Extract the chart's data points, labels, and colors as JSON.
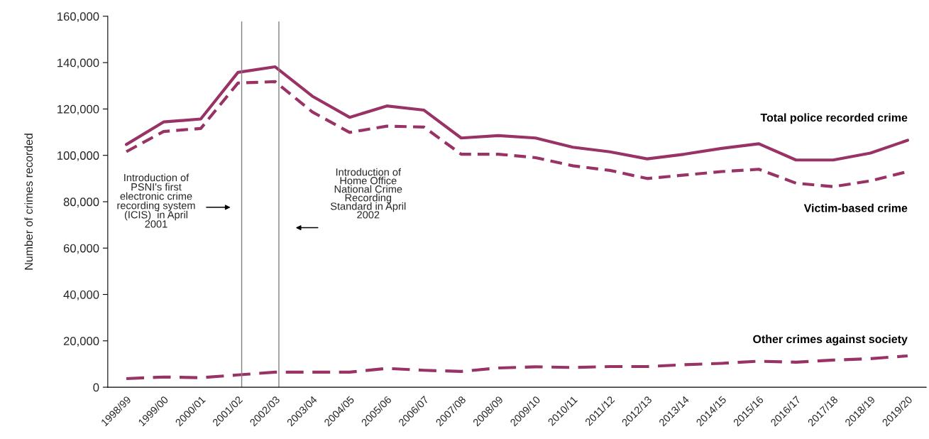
{
  "chart_data": {
    "type": "line",
    "ylabel": "Number of crimes recorded",
    "categories": [
      "1998/99",
      "1999/00",
      "2000/01",
      "2001/02",
      "2002/03",
      "2003/04",
      "2004/05",
      "2005/06",
      "2006/07",
      "2007/08",
      "2008/09",
      "2009/10",
      "2010/11",
      "2011/12",
      "2012/13",
      "2013/14",
      "2014/15",
      "2015/16",
      "2016/17",
      "2017/18",
      "2018/19",
      "2019/20"
    ],
    "series": [
      {
        "name": "Total police recorded crime",
        "color": "#993366",
        "line_style": "solid",
        "values": [
          104700,
          114400,
          115700,
          135800,
          138200,
          125500,
          116400,
          121300,
          119500,
          107500,
          108500,
          107500,
          103500,
          101500,
          98500,
          100500,
          103000,
          105000,
          98000,
          98000,
          101000,
          106500
        ]
      },
      {
        "name": "Victim-based crime",
        "color": "#993366",
        "line_style": "dashed",
        "values": [
          101600,
          110300,
          111600,
          131200,
          131800,
          118700,
          109900,
          112600,
          112200,
          100500,
          100500,
          99000,
          95500,
          93500,
          90000,
          91500,
          93000,
          94000,
          88000,
          86500,
          89000,
          93000
        ]
      },
      {
        "name": "Other crimes against society",
        "color": "#993366",
        "line_style": "dashed",
        "values": [
          3700,
          4400,
          4100,
          5300,
          6500,
          6500,
          6500,
          8100,
          7300,
          6800,
          8300,
          8800,
          8500,
          8900,
          8900,
          9700,
          10300,
          11200,
          10800,
          11700,
          12300,
          13500
        ]
      }
    ],
    "ylim": [
      0,
      160000
    ],
    "yticks": [
      {
        "value": 0,
        "label": "0"
      },
      {
        "value": 20000,
        "label": "20,000"
      },
      {
        "value": 40000,
        "label": "40,000"
      },
      {
        "value": 60000,
        "label": "60,000"
      },
      {
        "value": 80000,
        "label": "80,000"
      },
      {
        "value": 100000,
        "label": "100,000"
      },
      {
        "value": 120000,
        "label": "120,000"
      },
      {
        "value": 140000,
        "label": "140,000"
      },
      {
        "value": 160000,
        "label": "160,000"
      }
    ],
    "ref_lines": [
      {
        "axis": "x",
        "value": "2001/02",
        "color": "#808080"
      },
      {
        "axis": "x",
        "value": "2002/03",
        "color": "#808080"
      }
    ],
    "annotations": [
      "Introduction of\nPSNI's first\nelectronic crime\nrecording system\n(ICIS)  in April\n2001",
      "Introduction of\nHome Office\nNational Crime\nRecording\nStandard in April\n2002"
    ],
    "grid": false,
    "legend": false,
    "marker": "none"
  }
}
